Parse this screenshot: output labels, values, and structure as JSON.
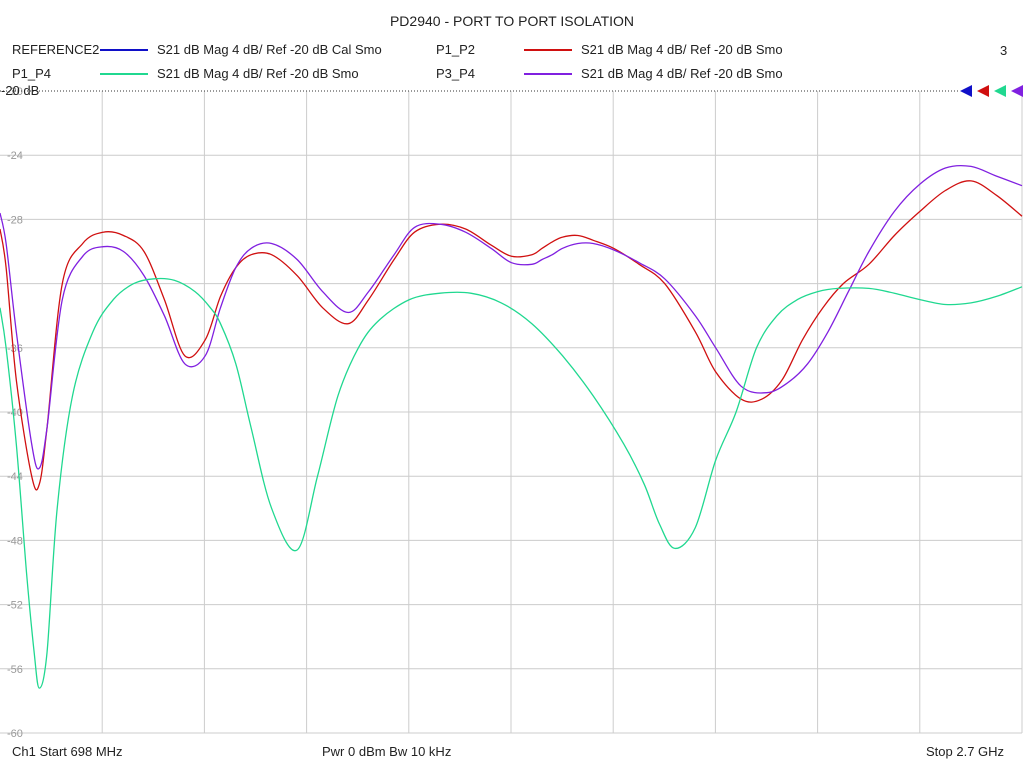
{
  "title": "PD2940 - PORT TO PORT ISOLATION",
  "legend": [
    {
      "name": "REFERENCE2",
      "desc": "S21  dB Mag  4 dB/ Ref -20 dB  Cal Smo",
      "color": "#1010c8"
    },
    {
      "name": "P1_P2",
      "desc": "S21  dB Mag  4 dB/ Ref -20 dB  Smo",
      "color": "#d01010"
    },
    {
      "name": "P1_P4",
      "desc": "S21  dB Mag  4 dB/ Ref -20 dB  Smo",
      "color": "#20d890"
    },
    {
      "name": "P3_P4",
      "desc": "S21  dB Mag  4 dB/ Ref -20 dB  Smo",
      "color": "#8020e0"
    }
  ],
  "ref_number": "3",
  "ref_label": "-20 dB",
  "footer": {
    "start": "Ch1  Start  698 MHz",
    "mid": "Pwr  0 dBm  Bw  10 kHz",
    "stop": "Stop  2.7 GHz"
  },
  "chart_data": {
    "type": "line",
    "title": "PD2940 - PORT TO PORT ISOLATION",
    "xlabel": "",
    "ylabel": "",
    "x_units": "MHz",
    "xlim": [
      698,
      2700
    ],
    "ylim": [
      -60,
      -20
    ],
    "yticks": [
      -20,
      -24,
      -28,
      -32,
      -36,
      -40,
      -44,
      -48,
      -52,
      -56,
      -60
    ],
    "ytick_labels": [
      "-20",
      "-24",
      "-28",
      "",
      "-36",
      "-40",
      "-44",
      "-48",
      "-52",
      "-56",
      "-60"
    ],
    "grid": true,
    "series": [
      {
        "name": "P1_P2",
        "color": "#d01010",
        "x": [
          698,
          710,
          730,
          760,
          775,
          790,
          820,
          860,
          900,
          940,
          980,
          1020,
          1060,
          1100,
          1130,
          1160,
          1190,
          1230,
          1280,
          1330,
          1380,
          1420,
          1470,
          1510,
          1560,
          1610,
          1660,
          1700,
          1740,
          1760,
          1780,
          1800,
          1830,
          1860,
          1900,
          1950,
          2000,
          2060,
          2100,
          2150,
          2190,
          2230,
          2270,
          2310,
          2350,
          2400,
          2450,
          2500,
          2550,
          2600,
          2650,
          2700
        ],
        "data": [
          -28.6,
          -31,
          -38,
          -44,
          -44.5,
          -41,
          -32,
          -29.5,
          -28.8,
          -29,
          -30,
          -33,
          -36.5,
          -35.5,
          -32.8,
          -31,
          -30.2,
          -30.2,
          -31.5,
          -33.5,
          -34.5,
          -33,
          -30.5,
          -28.8,
          -28.3,
          -28.6,
          -29.6,
          -30.3,
          -30.2,
          -29.8,
          -29.4,
          -29.1,
          -29,
          -29.3,
          -29.8,
          -30.8,
          -32,
          -35,
          -37.5,
          -39.2,
          -39.2,
          -38,
          -35.5,
          -33.5,
          -32,
          -30.8,
          -29,
          -27.5,
          -26.2,
          -25.6,
          -26.5,
          -27.8
        ]
      },
      {
        "name": "P3_P4",
        "color": "#8020e0",
        "x": [
          698,
          710,
          730,
          760,
          775,
          790,
          820,
          860,
          900,
          940,
          980,
          1020,
          1060,
          1100,
          1130,
          1160,
          1190,
          1230,
          1280,
          1330,
          1380,
          1420,
          1470,
          1510,
          1560,
          1610,
          1660,
          1700,
          1740,
          1760,
          1780,
          1800,
          1830,
          1860,
          1900,
          1950,
          2000,
          2060,
          2100,
          2150,
          2200,
          2240,
          2280,
          2320,
          2360,
          2400,
          2450,
          2500,
          2550,
          2600,
          2650,
          2700
        ],
        "data": [
          -27.6,
          -29.5,
          -35,
          -42,
          -43.5,
          -41,
          -33,
          -30.3,
          -29.7,
          -30,
          -31.5,
          -34,
          -37,
          -36.5,
          -33.5,
          -31,
          -29.8,
          -29.5,
          -30.5,
          -32.5,
          -33.8,
          -32.5,
          -30.2,
          -28.5,
          -28.3,
          -28.8,
          -29.8,
          -30.7,
          -30.8,
          -30.5,
          -30.2,
          -29.8,
          -29.5,
          -29.5,
          -29.9,
          -30.7,
          -31.7,
          -34,
          -36,
          -38.4,
          -38.8,
          -38.2,
          -37,
          -35,
          -32.5,
          -30,
          -27.5,
          -25.8,
          -24.8,
          -24.7,
          -25.3,
          -25.9
        ]
      },
      {
        "name": "P1_P4",
        "color": "#20d890",
        "x": [
          698,
          710,
          730,
          750,
          765,
          775,
          790,
          810,
          840,
          880,
          920,
          960,
          1000,
          1040,
          1080,
          1110,
          1130,
          1160,
          1190,
          1230,
          1280,
          1320,
          1360,
          1400,
          1440,
          1500,
          1560,
          1620,
          1680,
          1740,
          1800,
          1860,
          1920,
          1960,
          1990,
          2020,
          2060,
          2100,
          2140,
          2180,
          2220,
          2260,
          2300,
          2340,
          2400,
          2450,
          2500,
          2550,
          2600,
          2650,
          2700
        ],
        "data": [
          -33.5,
          -36,
          -42,
          -50,
          -55,
          -57.2,
          -55,
          -46,
          -39,
          -35,
          -33,
          -32,
          -31.7,
          -31.8,
          -32.5,
          -33.5,
          -34.5,
          -37,
          -41,
          -46,
          -48.6,
          -44,
          -39,
          -36,
          -34.3,
          -33,
          -32.6,
          -32.6,
          -33.2,
          -34.5,
          -36.5,
          -39,
          -42,
          -44.5,
          -47,
          -48.5,
          -47.2,
          -43,
          -40,
          -36,
          -34,
          -33,
          -32.5,
          -32.3,
          -32.3,
          -32.6,
          -33,
          -33.3,
          -33.2,
          -32.8,
          -32.2
        ]
      },
      {
        "name": "REFERENCE2",
        "color": "#1010c8",
        "x": [
          698,
          2700
        ],
        "data": [
          -20,
          -20
        ]
      }
    ]
  }
}
